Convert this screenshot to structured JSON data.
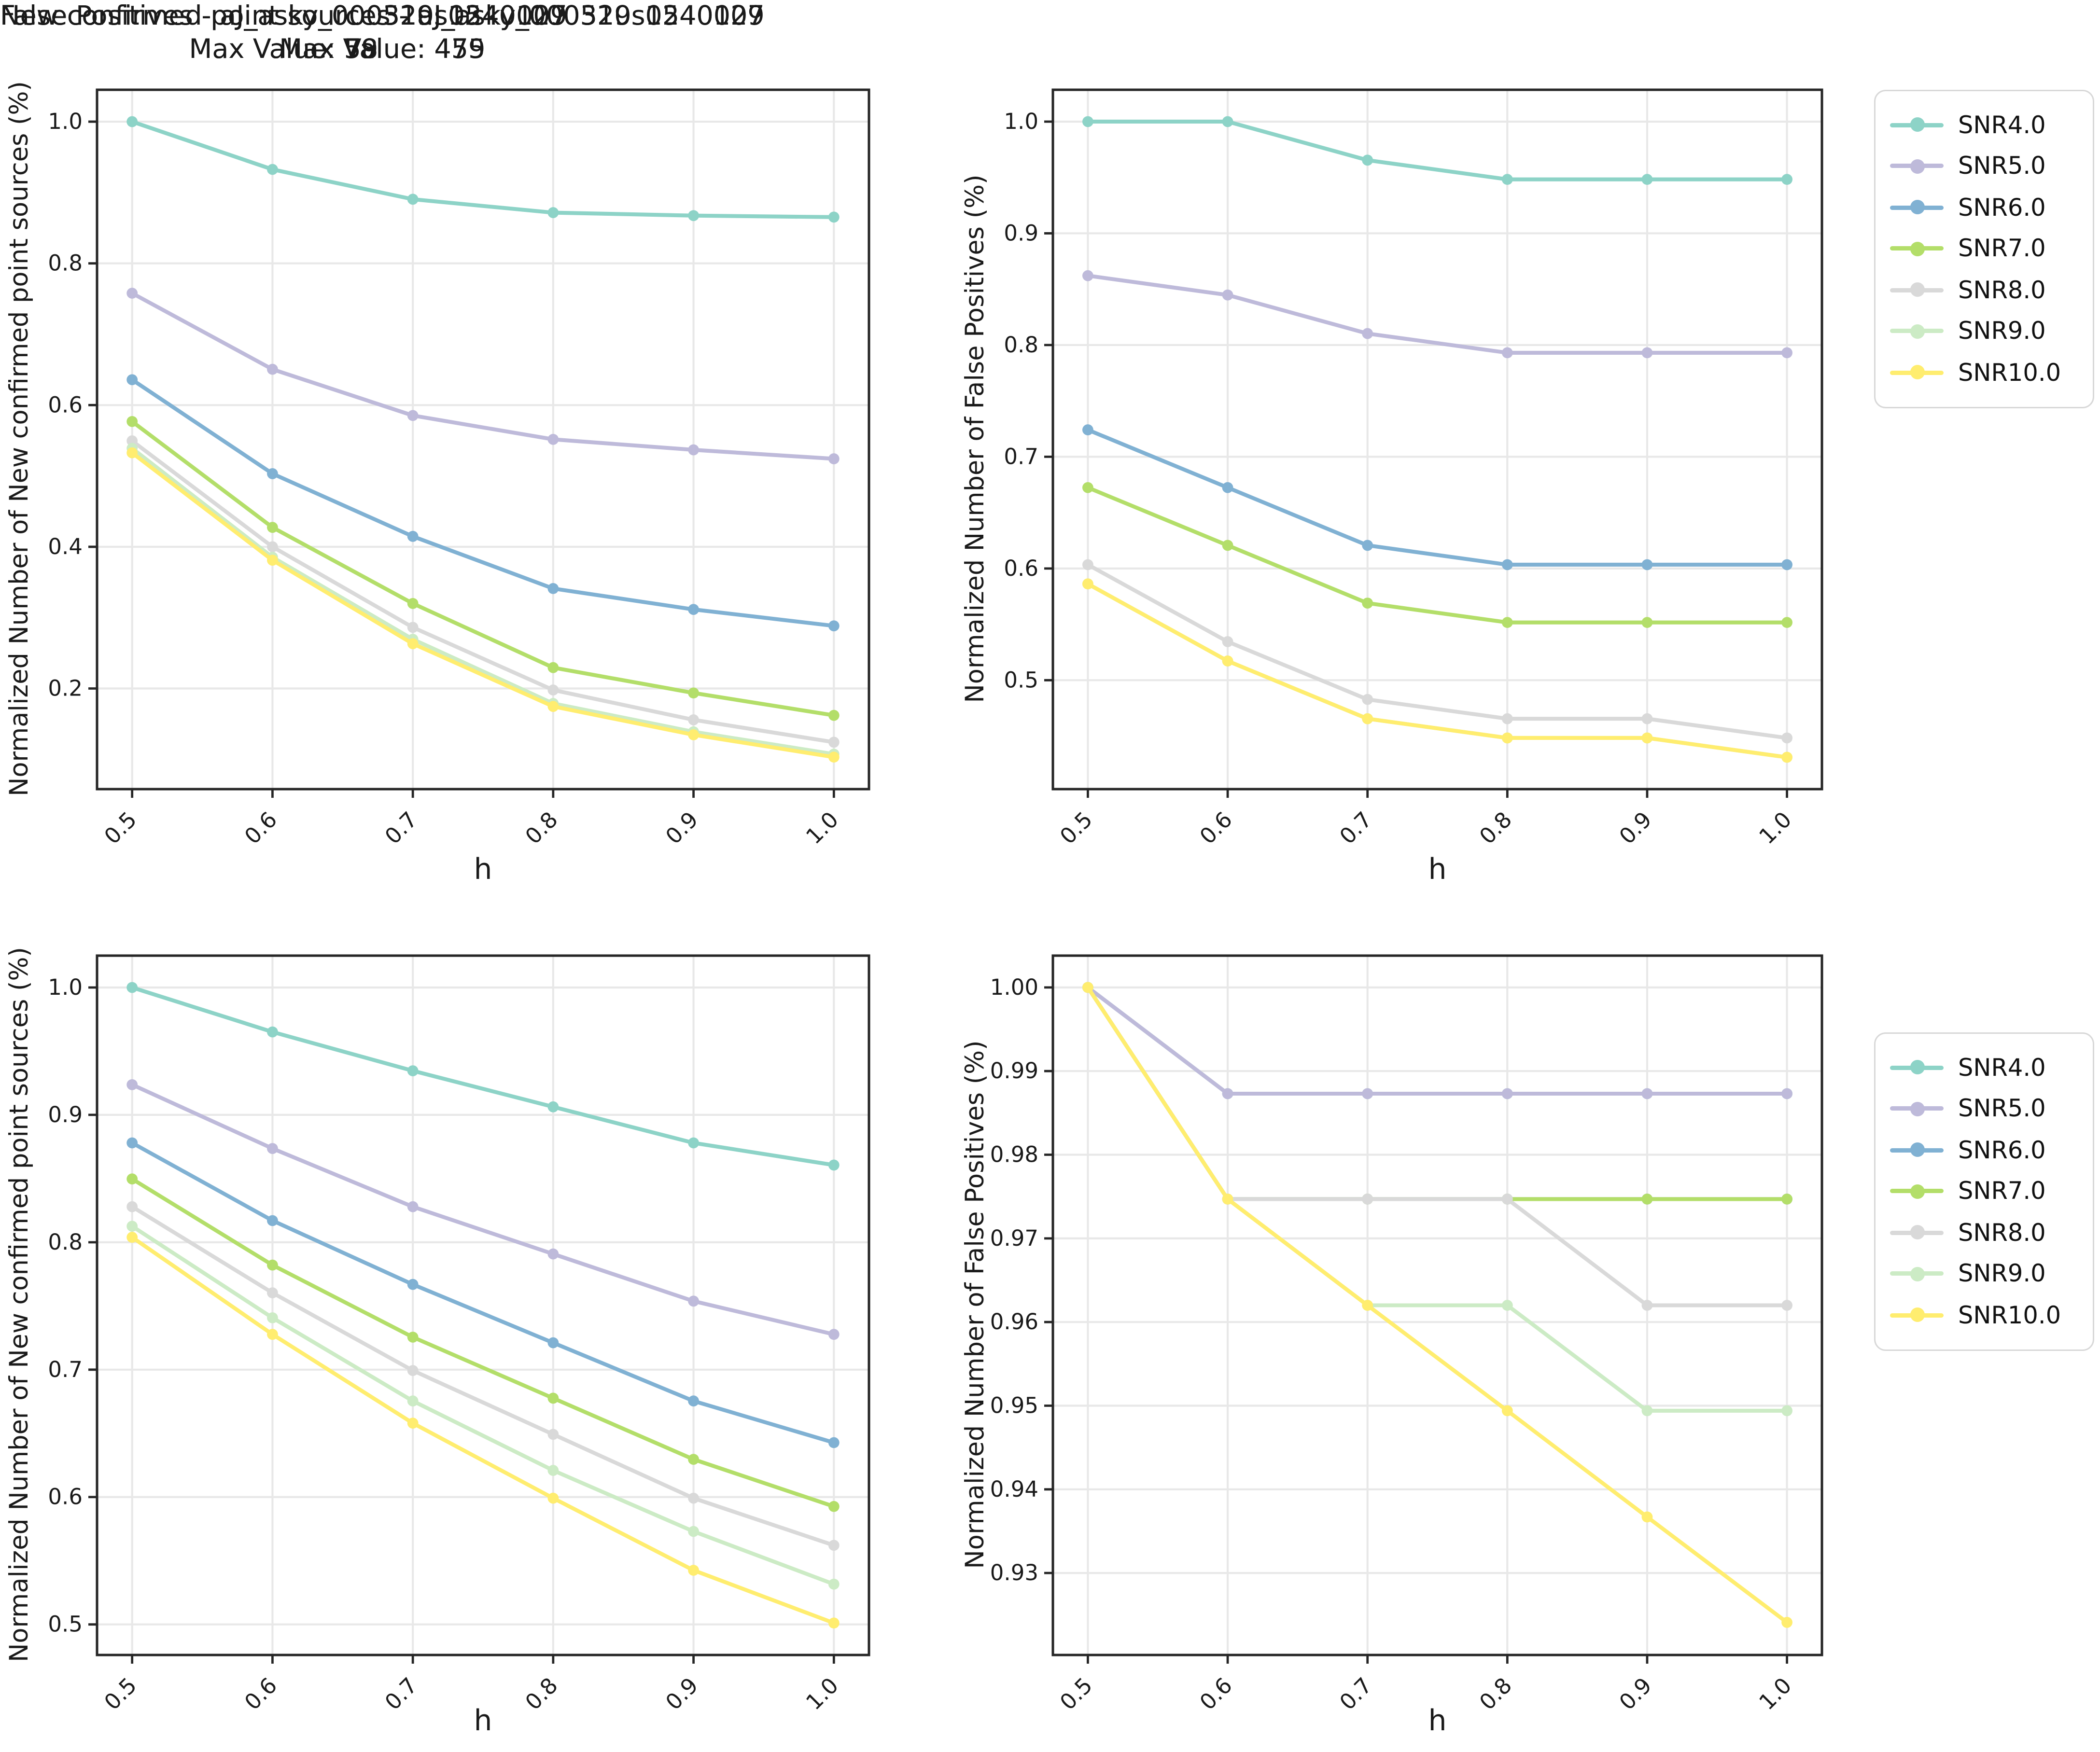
{
  "figure": {
    "background": "#ffffff"
  },
  "palette": {
    "SNR4.0": "#8dd3c7",
    "SNR5.0": "#bebada",
    "SNR6.0": "#80b1d3",
    "SNR7.0": "#b3de69",
    "SNR8.0": "#d9d9d9",
    "SNR9.0": "#ccebc5",
    "SNR10.0": "#ffed6f"
  },
  "legend": {
    "entries": [
      "SNR4.0",
      "SNR5.0",
      "SNR6.0",
      "SNR7.0",
      "SNR8.0",
      "SNR9.0",
      "SNR10.0"
    ]
  },
  "chart_data": [
    {
      "type": "line",
      "title_line1": "New confirmed point sources - aJ_asky_000310s0540127",
      "title_line2": "Max Value: 475",
      "max_value": 475,
      "xlabel": "h",
      "ylabel": "Normalized Number of New confirmed point sources (%)",
      "x": [
        0.5,
        0.6,
        0.7,
        0.8,
        0.9,
        1.0
      ],
      "xtick_labels": [
        "0.5",
        "0.6",
        "0.7",
        "0.8",
        "0.9",
        "1.0"
      ],
      "yticks": [
        0.2,
        0.4,
        0.6,
        0.8,
        1.0
      ],
      "ytick_labels": [
        "0.2",
        "0.4",
        "0.6",
        "0.8",
        "1.0"
      ],
      "xlim": [
        0.475,
        1.025
      ],
      "ylim": [
        0.058,
        1.045
      ],
      "grid": true,
      "series": [
        {
          "name": "SNR4.0",
          "values": [
            1.0,
            0.9326,
            0.8905,
            0.8716,
            0.8674,
            0.8653
          ]
        },
        {
          "name": "SNR5.0",
          "values": [
            0.7579,
            0.6505,
            0.5853,
            0.5516,
            0.5368,
            0.5242
          ]
        },
        {
          "name": "SNR6.0",
          "values": [
            0.6358,
            0.5032,
            0.4147,
            0.3411,
            0.3116,
            0.2884
          ]
        },
        {
          "name": "SNR7.0",
          "values": [
            0.5768,
            0.4274,
            0.32,
            0.2295,
            0.1937,
            0.1621
          ]
        },
        {
          "name": "SNR8.0",
          "values": [
            0.5495,
            0.4,
            0.2863,
            0.1979,
            0.1558,
            0.1242
          ]
        },
        {
          "name": "SNR9.0",
          "values": [
            0.5389,
            0.3853,
            0.2695,
            0.1789,
            0.1389,
            0.1074
          ]
        },
        {
          "name": "SNR10.0",
          "values": [
            0.5326,
            0.3811,
            0.2632,
            0.1747,
            0.1347,
            0.1032
          ]
        }
      ]
    },
    {
      "type": "line",
      "title_line1": "False Positives - aJ_asky_000310s0540127",
      "title_line2": "Max Value: 58",
      "max_value": 58,
      "xlabel": "h",
      "ylabel": "Normalized Number of False Positives (%)",
      "x": [
        0.5,
        0.6,
        0.7,
        0.8,
        0.9,
        1.0
      ],
      "xtick_labels": [
        "0.5",
        "0.6",
        "0.7",
        "0.8",
        "0.9",
        "1.0"
      ],
      "yticks": [
        0.5,
        0.6,
        0.7,
        0.8,
        0.9,
        1.0
      ],
      "ytick_labels": [
        "0.5",
        "0.6",
        "0.7",
        "0.8",
        "0.9",
        "1.0"
      ],
      "xlim": [
        0.475,
        1.025
      ],
      "ylim": [
        0.4025,
        1.0285
      ],
      "grid": true,
      "series": [
        {
          "name": "SNR4.0",
          "values": [
            1.0,
            1.0,
            0.9655,
            0.9483,
            0.9483,
            0.9483
          ]
        },
        {
          "name": "SNR5.0",
          "values": [
            0.8621,
            0.8448,
            0.8103,
            0.7931,
            0.7931,
            0.7931
          ]
        },
        {
          "name": "SNR6.0",
          "values": [
            0.7241,
            0.6724,
            0.6207,
            0.6034,
            0.6034,
            0.6034
          ]
        },
        {
          "name": "SNR7.0",
          "values": [
            0.6724,
            0.6207,
            0.569,
            0.5517,
            0.5517,
            0.5517
          ]
        },
        {
          "name": "SNR8.0",
          "values": [
            0.6034,
            0.5345,
            0.4828,
            0.4655,
            0.4655,
            0.4483
          ]
        },
        {
          "name": "SNR9.0",
          "values": [
            0.5862,
            0.5172,
            0.4655,
            0.4483,
            0.4483,
            0.431
          ]
        },
        {
          "name": "SNR10.0",
          "values": [
            0.5862,
            0.5172,
            0.4655,
            0.4483,
            0.4483,
            0.431
          ]
        }
      ]
    },
    {
      "type": "line",
      "title_line1": "New confirmed point sources - aJ_asky_000529s1240009",
      "title_line2": "Max Value: 459",
      "max_value": 459,
      "xlabel": "h",
      "ylabel": "Normalized Number of New confirmed point sources (%)",
      "x": [
        0.5,
        0.6,
        0.7,
        0.8,
        0.9,
        1.0
      ],
      "xtick_labels": [
        "0.5",
        "0.6",
        "0.7",
        "0.8",
        "0.9",
        "1.0"
      ],
      "yticks": [
        0.5,
        0.6,
        0.7,
        0.8,
        0.9,
        1.0
      ],
      "ytick_labels": [
        "0.5",
        "0.6",
        "0.7",
        "0.8",
        "0.9",
        "1.0"
      ],
      "xlim": [
        0.475,
        1.025
      ],
      "ylim": [
        0.476,
        1.025
      ],
      "grid": true,
      "series": [
        {
          "name": "SNR4.0",
          "values": [
            1.0,
            0.9651,
            0.9346,
            0.9063,
            0.878,
            0.8606
          ]
        },
        {
          "name": "SNR5.0",
          "values": [
            0.9237,
            0.8736,
            0.8279,
            0.7908,
            0.7538,
            0.7277
          ]
        },
        {
          "name": "SNR6.0",
          "values": [
            0.878,
            0.817,
            0.7669,
            0.7211,
            0.6754,
            0.6427
          ]
        },
        {
          "name": "SNR7.0",
          "values": [
            0.8497,
            0.7821,
            0.7255,
            0.6776,
            0.6296,
            0.5926
          ]
        },
        {
          "name": "SNR8.0",
          "values": [
            0.8279,
            0.7603,
            0.6993,
            0.6492,
            0.5991,
            0.5621
          ]
        },
        {
          "name": "SNR9.0",
          "values": [
            0.8126,
            0.7407,
            0.6754,
            0.6209,
            0.573,
            0.5316
          ]
        },
        {
          "name": "SNR10.0",
          "values": [
            0.8039,
            0.7277,
            0.658,
            0.5991,
            0.5425,
            0.5011
          ]
        }
      ]
    },
    {
      "type": "line",
      "title_line1": "False Positives - aJ_asky_000529s1240009",
      "title_line2": "Max Value: 79",
      "max_value": 79,
      "xlabel": "h",
      "ylabel": "Normalized Number of False Positives (%)",
      "x": [
        0.5,
        0.6,
        0.7,
        0.8,
        0.9,
        1.0
      ],
      "xtick_labels": [
        "0.5",
        "0.6",
        "0.7",
        "0.8",
        "0.9",
        "1.0"
      ],
      "yticks": [
        0.93,
        0.94,
        0.95,
        0.96,
        0.97,
        0.98,
        0.99,
        1.0
      ],
      "ytick_labels": [
        "0.93",
        "0.94",
        "0.95",
        "0.96",
        "0.97",
        "0.98",
        "0.99",
        "1.00"
      ],
      "xlim": [
        0.475,
        1.025
      ],
      "ylim": [
        0.9202,
        1.0038
      ],
      "grid": true,
      "series": [
        {
          "name": "SNR4.0",
          "values": [
            1.0,
            0.9873,
            0.9873,
            0.9873,
            0.9873,
            0.9873
          ]
        },
        {
          "name": "SNR5.0",
          "values": [
            1.0,
            0.9873,
            0.9873,
            0.9873,
            0.9873,
            0.9873
          ]
        },
        {
          "name": "SNR6.0",
          "values": [
            1.0,
            0.9747,
            0.9747,
            0.9747,
            0.9747,
            0.9747
          ]
        },
        {
          "name": "SNR7.0",
          "values": [
            1.0,
            0.9747,
            0.9747,
            0.9747,
            0.9747,
            0.9747
          ]
        },
        {
          "name": "SNR8.0",
          "values": [
            1.0,
            0.9747,
            0.9747,
            0.9747,
            0.962,
            0.962
          ]
        },
        {
          "name": "SNR9.0",
          "values": [
            1.0,
            0.9747,
            0.962,
            0.962,
            0.9494,
            0.9494
          ]
        },
        {
          "name": "SNR10.0",
          "values": [
            1.0,
            0.9747,
            0.962,
            0.9494,
            0.9367,
            0.9241
          ]
        }
      ]
    }
  ]
}
